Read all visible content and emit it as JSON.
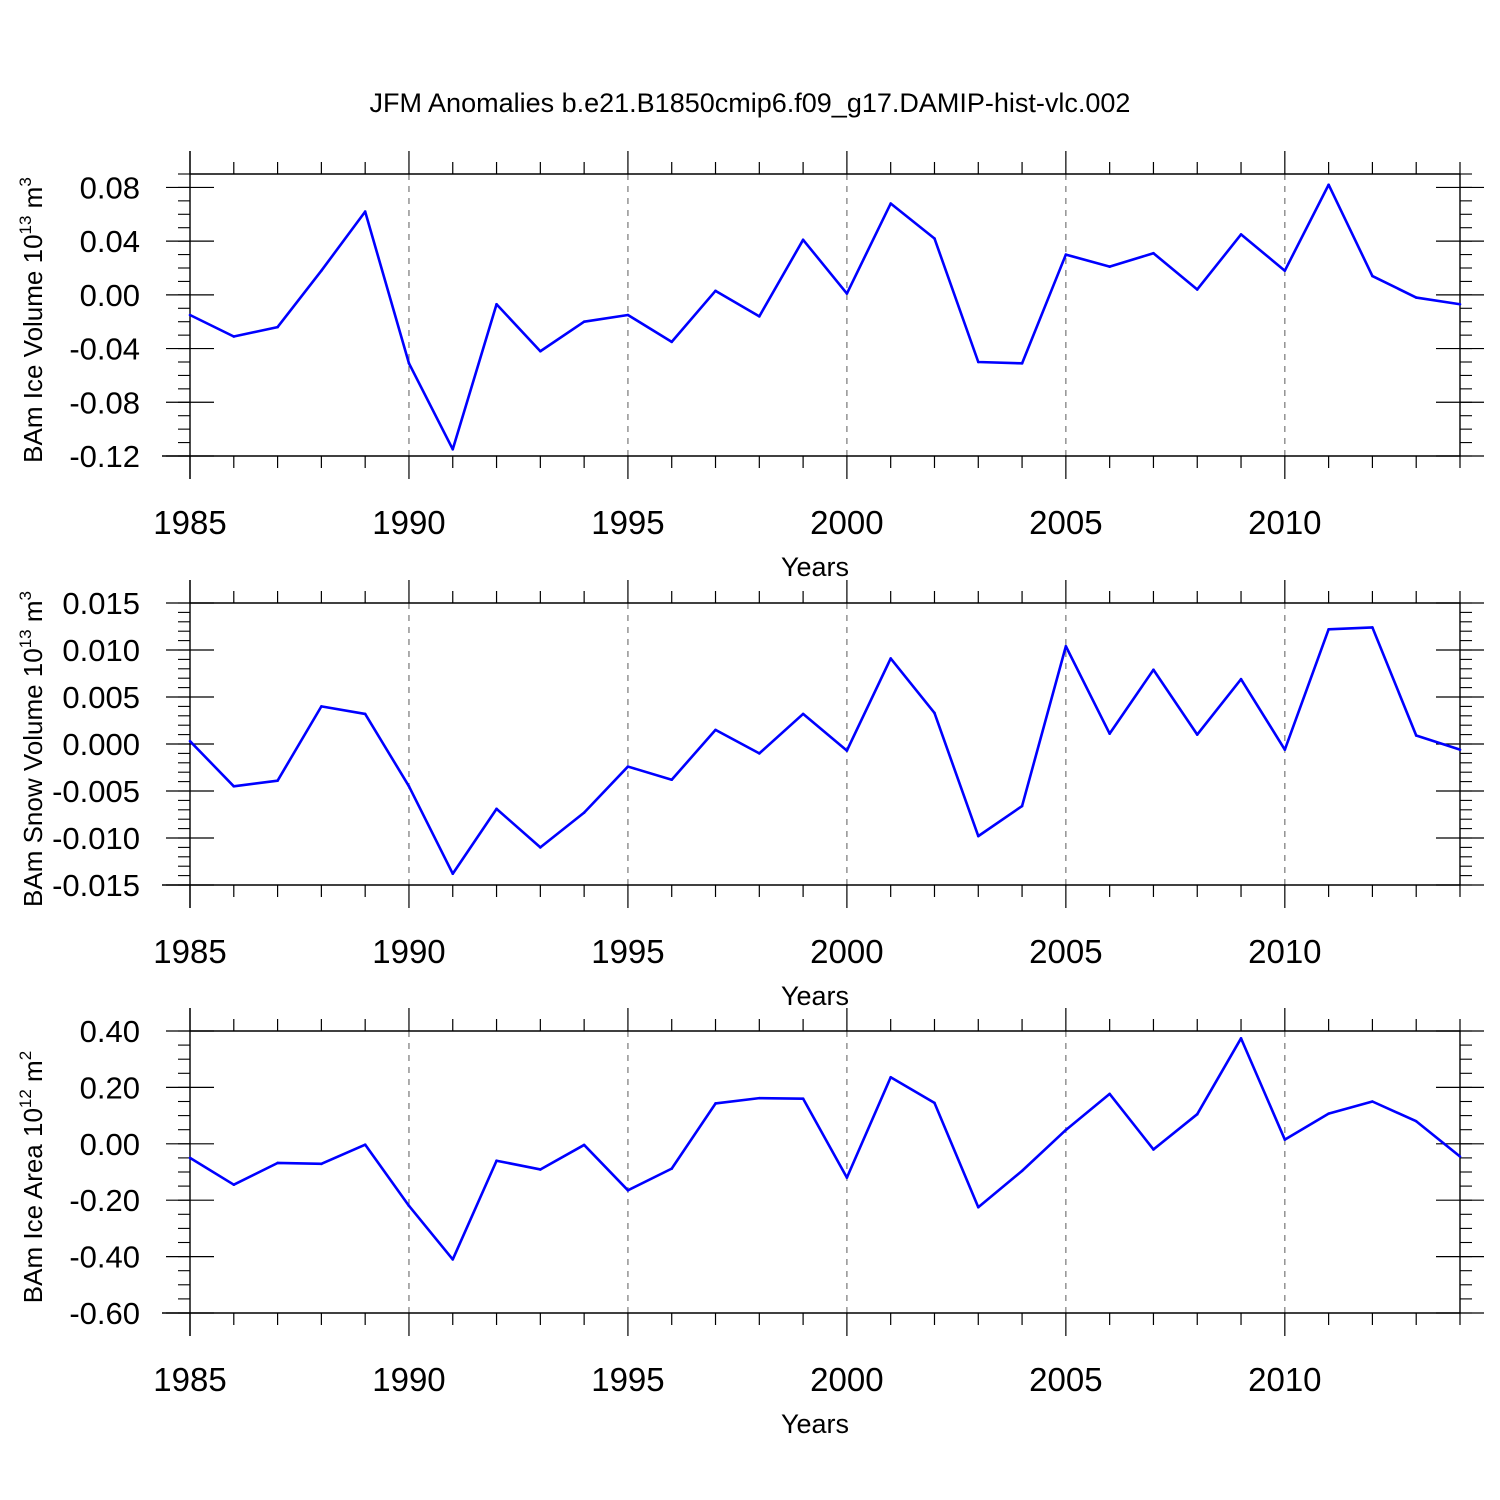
{
  "figure": {
    "title": "JFM Anomalies b.e21.B1850cmip6.f09_g17.DAMIP-hist-vlc.002",
    "line_color": "#0000ff",
    "grid_color": "#777777"
  },
  "chart_data": [
    {
      "type": "line",
      "ylabel_main": "BAm Ice Volume 10",
      "ylabel_exp": "13",
      "ylabel_tail": " m",
      "ylabel_unit_exp": "3",
      "xlabel": "Years",
      "xlim": [
        1985,
        2014
      ],
      "ylim": [
        -0.12,
        0.09
      ],
      "x_ticks": [
        1985,
        1990,
        1995,
        2000,
        2005,
        2010
      ],
      "x_tick_labels": [
        "1985",
        "1990",
        "1995",
        "2000",
        "2005",
        "2010"
      ],
      "y_ticks": [
        -0.12,
        -0.08,
        -0.04,
        0.0,
        0.04,
        0.08
      ],
      "y_tick_labels": [
        "-0.12",
        "-0.08",
        "-0.04",
        "0.00",
        "0.04",
        "0.08"
      ],
      "y_minor_step": 0.01,
      "grid_x": [
        1990,
        1995,
        2000,
        2005,
        2010
      ],
      "x": [
        1985,
        1986,
        1987,
        1988,
        1989,
        1990,
        1991,
        1992,
        1993,
        1994,
        1995,
        1996,
        1997,
        1998,
        1999,
        2000,
        2001,
        2002,
        2003,
        2004,
        2005,
        2006,
        2007,
        2008,
        2009,
        2010,
        2011,
        2012,
        2013,
        2014
      ],
      "y": [
        -0.015,
        -0.031,
        -0.024,
        0.018,
        0.062,
        -0.051,
        -0.115,
        -0.007,
        -0.042,
        -0.02,
        -0.015,
        -0.035,
        0.003,
        -0.016,
        0.041,
        0.001,
        0.068,
        0.042,
        -0.05,
        -0.051,
        0.03,
        0.021,
        0.031,
        0.004,
        0.045,
        0.018,
        0.082,
        0.014,
        -0.002,
        -0.007
      ]
    },
    {
      "type": "line",
      "ylabel_main": "BAm Snow Volume 10",
      "ylabel_exp": "13",
      "ylabel_tail": " m",
      "ylabel_unit_exp": "3",
      "xlabel": "Years",
      "xlim": [
        1985,
        2014
      ],
      "ylim": [
        -0.015,
        0.015
      ],
      "x_ticks": [
        1985,
        1990,
        1995,
        2000,
        2005,
        2010
      ],
      "x_tick_labels": [
        "1985",
        "1990",
        "1995",
        "2000",
        "2005",
        "2010"
      ],
      "y_ticks": [
        -0.015,
        -0.01,
        -0.005,
        0.0,
        0.005,
        0.01,
        0.015
      ],
      "y_tick_labels": [
        "-0.015",
        "-0.010",
        "-0.005",
        "0.000",
        "0.005",
        "0.010",
        "0.015"
      ],
      "y_minor_step": 0.001,
      "grid_x": [
        1990,
        1995,
        2000,
        2005,
        2010
      ],
      "x": [
        1985,
        1986,
        1987,
        1988,
        1989,
        1990,
        1991,
        1992,
        1993,
        1994,
        1995,
        1996,
        1997,
        1998,
        1999,
        2000,
        2001,
        2002,
        2003,
        2004,
        2005,
        2006,
        2007,
        2008,
        2009,
        2010,
        2011,
        2012,
        2013,
        2014
      ],
      "y": [
        0.0003,
        -0.0045,
        -0.0039,
        0.004,
        0.0032,
        -0.0045,
        -0.0138,
        -0.0069,
        -0.011,
        -0.0073,
        -0.0024,
        -0.0038,
        0.0015,
        -0.001,
        0.0032,
        -0.0007,
        0.0091,
        0.0033,
        -0.0098,
        -0.0066,
        0.0104,
        0.0011,
        0.0079,
        0.001,
        0.0069,
        -0.0006,
        0.0122,
        0.0124,
        0.0009,
        -0.0006
      ]
    },
    {
      "type": "line",
      "ylabel_main": "BAm Ice Area 10",
      "ylabel_exp": "12",
      "ylabel_tail": " m",
      "ylabel_unit_exp": "2",
      "xlabel": "Years",
      "xlim": [
        1985,
        2014
      ],
      "ylim": [
        -0.6,
        0.4
      ],
      "x_ticks": [
        1985,
        1990,
        1995,
        2000,
        2005,
        2010
      ],
      "x_tick_labels": [
        "1985",
        "1990",
        "1995",
        "2000",
        "2005",
        "2010"
      ],
      "y_ticks": [
        -0.6,
        -0.4,
        -0.2,
        0.0,
        0.2,
        0.4
      ],
      "y_tick_labels": [
        "-0.60",
        "-0.40",
        "-0.20",
        "0.00",
        "0.20",
        "0.40"
      ],
      "y_minor_step": 0.05,
      "grid_x": [
        1990,
        1995,
        2000,
        2005,
        2010
      ],
      "x": [
        1985,
        1986,
        1987,
        1988,
        1989,
        1990,
        1991,
        1992,
        1993,
        1994,
        1995,
        1996,
        1997,
        1998,
        1999,
        2000,
        2001,
        2002,
        2003,
        2004,
        2005,
        2006,
        2007,
        2008,
        2009,
        2010,
        2011,
        2012,
        2013,
        2014
      ],
      "y": [
        -0.05,
        -0.145,
        -0.068,
        -0.071,
        -0.003,
        -0.22,
        -0.41,
        -0.06,
        -0.091,
        -0.004,
        -0.165,
        -0.088,
        0.143,
        0.162,
        0.16,
        -0.12,
        0.236,
        0.145,
        -0.225,
        -0.096,
        0.049,
        0.177,
        -0.02,
        0.105,
        0.374,
        0.015,
        0.107,
        0.15,
        0.08,
        -0.045
      ]
    }
  ]
}
